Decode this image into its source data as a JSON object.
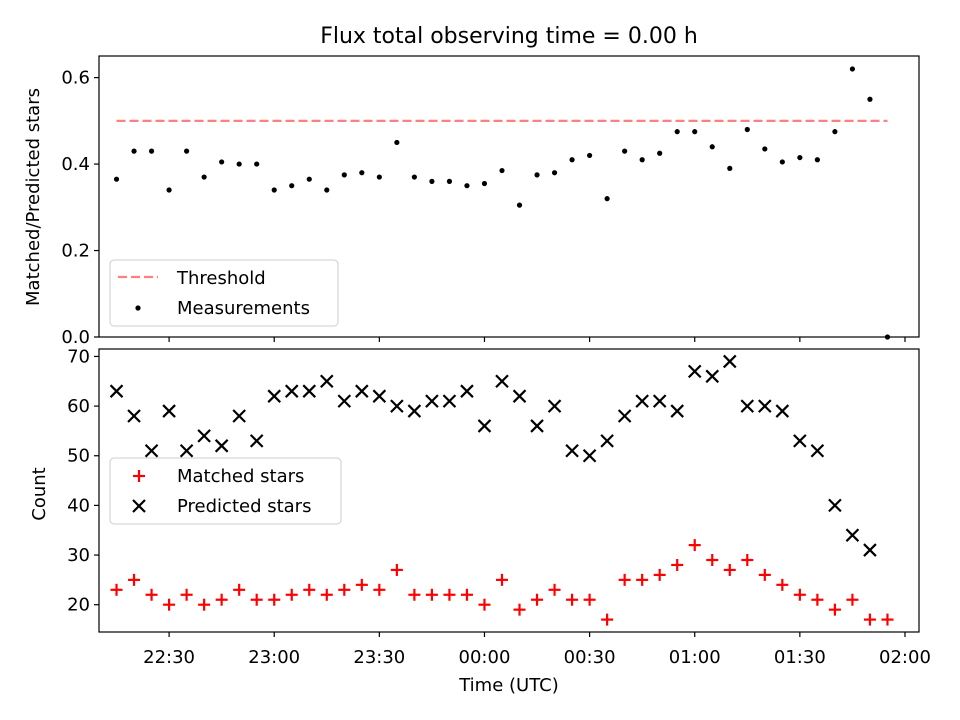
{
  "chart_data": [
    {
      "type": "scatter",
      "title": "Flux total observing time = 0.00 h",
      "ylabel": "Matched/Predicted stars",
      "xlabel": "",
      "ylim": [
        0,
        0.65
      ],
      "yticks": [
        "0.0",
        "0.2",
        "0.4",
        "0.6"
      ],
      "xlim": [
        "22:10",
        "02:04"
      ],
      "threshold": {
        "name": "Threshold",
        "value": 0.5,
        "x_start": "22:15",
        "x_end": "01:55",
        "color": "#ff7f7f"
      },
      "series": [
        {
          "name": "Measurements",
          "color": "#000000",
          "x": [
            "22:15",
            "22:20",
            "22:25",
            "22:30",
            "22:35",
            "22:40",
            "22:45",
            "22:50",
            "22:55",
            "23:00",
            "23:05",
            "23:10",
            "23:15",
            "23:20",
            "23:25",
            "23:30",
            "23:35",
            "23:40",
            "23:45",
            "23:50",
            "23:55",
            "00:00",
            "00:05",
            "00:10",
            "00:15",
            "00:20",
            "00:25",
            "00:30",
            "00:35",
            "00:40",
            "00:45",
            "00:50",
            "00:55",
            "01:00",
            "01:05",
            "01:10",
            "01:15",
            "01:20",
            "01:25",
            "01:30",
            "01:35",
            "01:40",
            "01:45",
            "01:50",
            "01:55"
          ],
          "y": [
            0.365,
            0.43,
            0.43,
            0.34,
            0.43,
            0.37,
            0.405,
            0.4,
            0.4,
            0.34,
            0.35,
            0.365,
            0.34,
            0.375,
            0.38,
            0.37,
            0.45,
            0.37,
            0.36,
            0.36,
            0.35,
            0.355,
            0.385,
            0.305,
            0.375,
            0.38,
            0.41,
            0.42,
            0.32,
            0.43,
            0.41,
            0.425,
            0.475,
            0.475,
            0.44,
            0.39,
            0.48,
            0.435,
            0.405,
            0.415,
            0.41,
            0.475,
            0.62,
            0.55,
            0.0
          ]
        }
      ],
      "legend": {
        "placement": "lower-left",
        "entries": [
          "Threshold",
          "Measurements"
        ]
      }
    },
    {
      "type": "scatter",
      "title": "",
      "ylabel": "Count",
      "xlabel": "Time (UTC)",
      "ylim": [
        14.5,
        71.5
      ],
      "yticks": [
        "20",
        "30",
        "40",
        "50",
        "60",
        "70"
      ],
      "xlim": [
        "22:10",
        "02:04"
      ],
      "xticks": [
        "22:30",
        "23:00",
        "23:30",
        "00:00",
        "00:30",
        "01:00",
        "01:30",
        "02:00"
      ],
      "series": [
        {
          "name": "Matched stars",
          "marker": "+",
          "color": "#ff0000",
          "x": [
            "22:15",
            "22:20",
            "22:25",
            "22:30",
            "22:35",
            "22:40",
            "22:45",
            "22:50",
            "22:55",
            "23:00",
            "23:05",
            "23:10",
            "23:15",
            "23:20",
            "23:25",
            "23:30",
            "23:35",
            "23:40",
            "23:45",
            "23:50",
            "23:55",
            "00:00",
            "00:05",
            "00:10",
            "00:15",
            "00:20",
            "00:25",
            "00:30",
            "00:35",
            "00:40",
            "00:45",
            "00:50",
            "00:55",
            "01:00",
            "01:05",
            "01:10",
            "01:15",
            "01:20",
            "01:25",
            "01:30",
            "01:35",
            "01:40",
            "01:45",
            "01:50",
            "01:55"
          ],
          "y": [
            23,
            25,
            22,
            20,
            22,
            20,
            21,
            23,
            21,
            21,
            22,
            23,
            22,
            23,
            24,
            23,
            27,
            22,
            22,
            22,
            22,
            20,
            25,
            19,
            21,
            23,
            21,
            21,
            17,
            25,
            25,
            26,
            28,
            32,
            29,
            27,
            29,
            26,
            24,
            22,
            21,
            19,
            21,
            17,
            17
          ]
        },
        {
          "name": "Predicted stars",
          "marker": "x",
          "color": "#000000",
          "x": [
            "22:15",
            "22:20",
            "22:25",
            "22:30",
            "22:35",
            "22:40",
            "22:45",
            "22:50",
            "22:55",
            "23:00",
            "23:05",
            "23:10",
            "23:15",
            "23:20",
            "23:25",
            "23:30",
            "23:35",
            "23:40",
            "23:45",
            "23:50",
            "23:55",
            "00:00",
            "00:05",
            "00:10",
            "00:15",
            "00:20",
            "00:25",
            "00:30",
            "00:35",
            "00:40",
            "00:45",
            "00:50",
            "00:55",
            "01:00",
            "01:05",
            "01:10",
            "01:15",
            "01:20",
            "01:25",
            "01:30",
            "01:35",
            "01:40",
            "01:45",
            "01:50"
          ],
          "y": [
            63,
            58,
            51,
            59,
            51,
            54,
            52,
            58,
            53,
            62,
            63,
            63,
            65,
            61,
            63,
            62,
            60,
            59,
            61,
            61,
            63,
            56,
            65,
            62,
            56,
            60,
            51,
            50,
            53,
            58,
            61,
            61,
            59,
            67,
            66,
            69,
            60,
            60,
            59,
            53,
            51,
            40,
            34,
            31
          ]
        }
      ],
      "legend": {
        "placement": "center-left",
        "entries": [
          "Matched stars",
          "Predicted stars"
        ]
      }
    }
  ]
}
